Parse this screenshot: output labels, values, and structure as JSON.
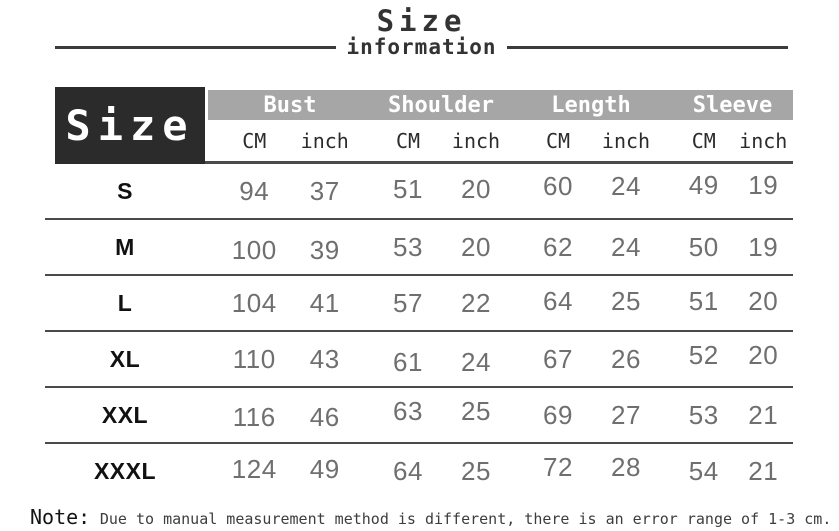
{
  "title": {
    "main": "Size",
    "sub": "information"
  },
  "table": {
    "corner_label": "Size",
    "groups": [
      {
        "label": "Bust"
      },
      {
        "label": "Shoulder"
      },
      {
        "label": "Length"
      },
      {
        "label": "Sleeve"
      }
    ],
    "units": {
      "cm": "CM",
      "inch": "inch"
    },
    "rows": [
      {
        "size": "S",
        "values": [
          "94",
          "37",
          "51",
          "20",
          "60",
          "24",
          "49",
          "19"
        ]
      },
      {
        "size": "M",
        "values": [
          "100",
          "39",
          "53",
          "20",
          "62",
          "24",
          "50",
          "19"
        ]
      },
      {
        "size": "L",
        "values": [
          "104",
          "41",
          "57",
          "22",
          "64",
          "25",
          "51",
          "20"
        ]
      },
      {
        "size": "XL",
        "values": [
          "110",
          "43",
          "61",
          "24",
          "67",
          "26",
          "52",
          "20"
        ]
      },
      {
        "size": "XXL",
        "values": [
          "116",
          "46",
          "63",
          "25",
          "69",
          "27",
          "53",
          "21"
        ]
      },
      {
        "size": "XXXL",
        "values": [
          "124",
          "49",
          "64",
          "25",
          "72",
          "28",
          "54",
          "21"
        ]
      }
    ]
  },
  "note": {
    "label": "Note:",
    "text": "Due to manual measurement method is different, there is an error range of 1-3 cm."
  },
  "colors": {
    "header_box": "#2b2b2b",
    "header_bar": "#a6a6a6",
    "row_line": "#4a4a4a",
    "value_text": "#6f6f6f",
    "label_text": "#111111"
  },
  "chart_data": {
    "type": "table",
    "title": "Size information",
    "columns": [
      "Size",
      "Bust CM",
      "Bust inch",
      "Shoulder CM",
      "Shoulder inch",
      "Length CM",
      "Length inch",
      "Sleeve CM",
      "Sleeve inch"
    ],
    "rows": [
      [
        "S",
        94,
        37,
        51,
        20,
        60,
        24,
        49,
        19
      ],
      [
        "M",
        100,
        39,
        53,
        20,
        62,
        24,
        50,
        19
      ],
      [
        "L",
        104,
        41,
        57,
        22,
        64,
        25,
        51,
        20
      ],
      [
        "XL",
        110,
        43,
        61,
        24,
        67,
        26,
        52,
        20
      ],
      [
        "XXL",
        116,
        46,
        63,
        25,
        69,
        27,
        53,
        21
      ],
      [
        "XXXL",
        124,
        49,
        64,
        25,
        72,
        28,
        54,
        21
      ]
    ],
    "note": "Note: Due to manual measurement method is different, there is an error range of 1-3 cm."
  }
}
